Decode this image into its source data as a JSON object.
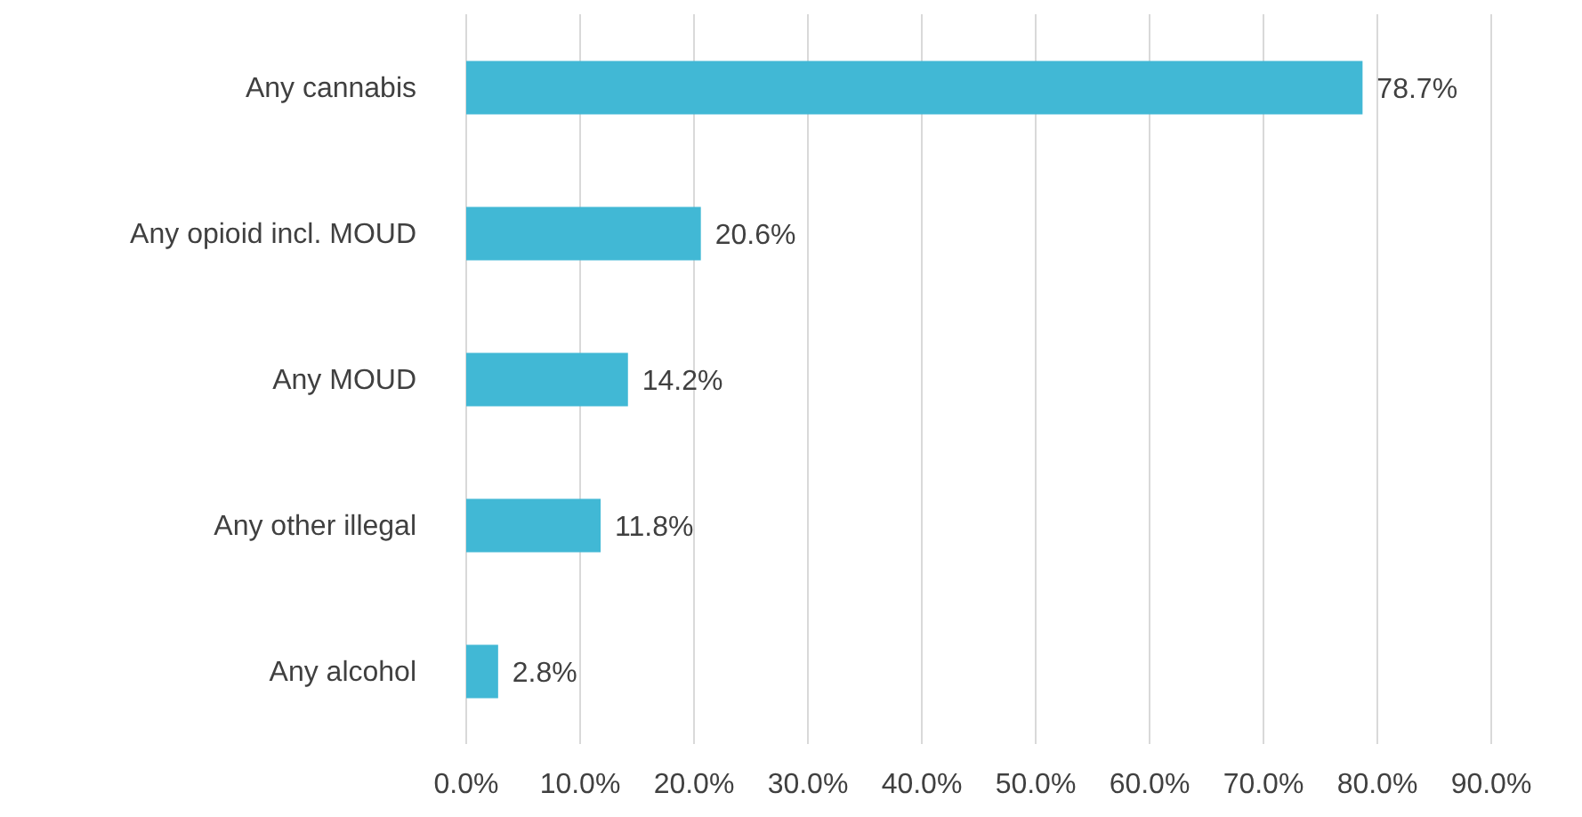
{
  "chart_data": {
    "type": "bar",
    "orientation": "horizontal",
    "categories": [
      "Any cannabis",
      "Any opioid incl. MOUD",
      "Any MOUD",
      "Any other illegal",
      "Any alcohol"
    ],
    "values": [
      78.7,
      20.6,
      14.2,
      11.8,
      2.8
    ],
    "value_labels": [
      "78.7%",
      "20.6%",
      "14.2%",
      "11.8%",
      "2.8%"
    ],
    "color": "#41b8d5",
    "xlim": [
      0,
      90
    ],
    "xticks": [
      {
        "value": 0,
        "label": "0.0%"
      },
      {
        "value": 10,
        "label": "10.0%"
      },
      {
        "value": 20,
        "label": "20.0%"
      },
      {
        "value": 30,
        "label": "30.0%"
      },
      {
        "value": 40,
        "label": "40.0%"
      },
      {
        "value": 50,
        "label": "50.0%"
      },
      {
        "value": 60,
        "label": "60.0%"
      },
      {
        "value": 70,
        "label": "70.0%"
      },
      {
        "value": 80,
        "label": "80.0%"
      },
      {
        "value": 90,
        "label": "90.0%"
      }
    ],
    "grid": "x"
  }
}
